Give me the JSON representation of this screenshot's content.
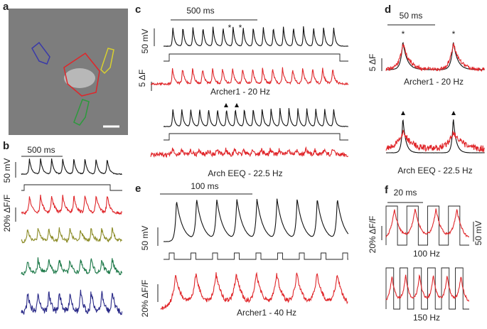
{
  "panels": {
    "a": {
      "label": "a"
    },
    "b": {
      "label": "b",
      "time_scale": "500 ms",
      "voltage_scale": "50 mV",
      "fluor_scale": "20% ΔF/F"
    },
    "c": {
      "label": "c",
      "time_scale": "500 ms",
      "voltage_scale": "50 mV",
      "fluor_scale": "5 ΔF",
      "marker": "*",
      "caption_1": "Archer1 - 20 Hz",
      "caption_2": "Arch EEQ - 22.5 Hz"
    },
    "d": {
      "label": "d",
      "time_scale": "50 ms",
      "fluor_scale": "5 ΔF",
      "marker": "*",
      "caption_1": "Archer1 - 20 Hz",
      "caption_2": "Arch EEQ - 22.5 Hz"
    },
    "e": {
      "label": "e",
      "time_scale": "100 ms",
      "voltage_scale": "50 mV",
      "fluor_scale": "20% ΔF/F",
      "caption": "Archer1 - 40 Hz"
    },
    "f": {
      "label": "f",
      "time_scale": "20 ms",
      "fluor_scale": "20% ΔF/F",
      "voltage_scale": "50 mV",
      "caption_1": "100 Hz",
      "caption_2": "150 Hz"
    }
  }
}
